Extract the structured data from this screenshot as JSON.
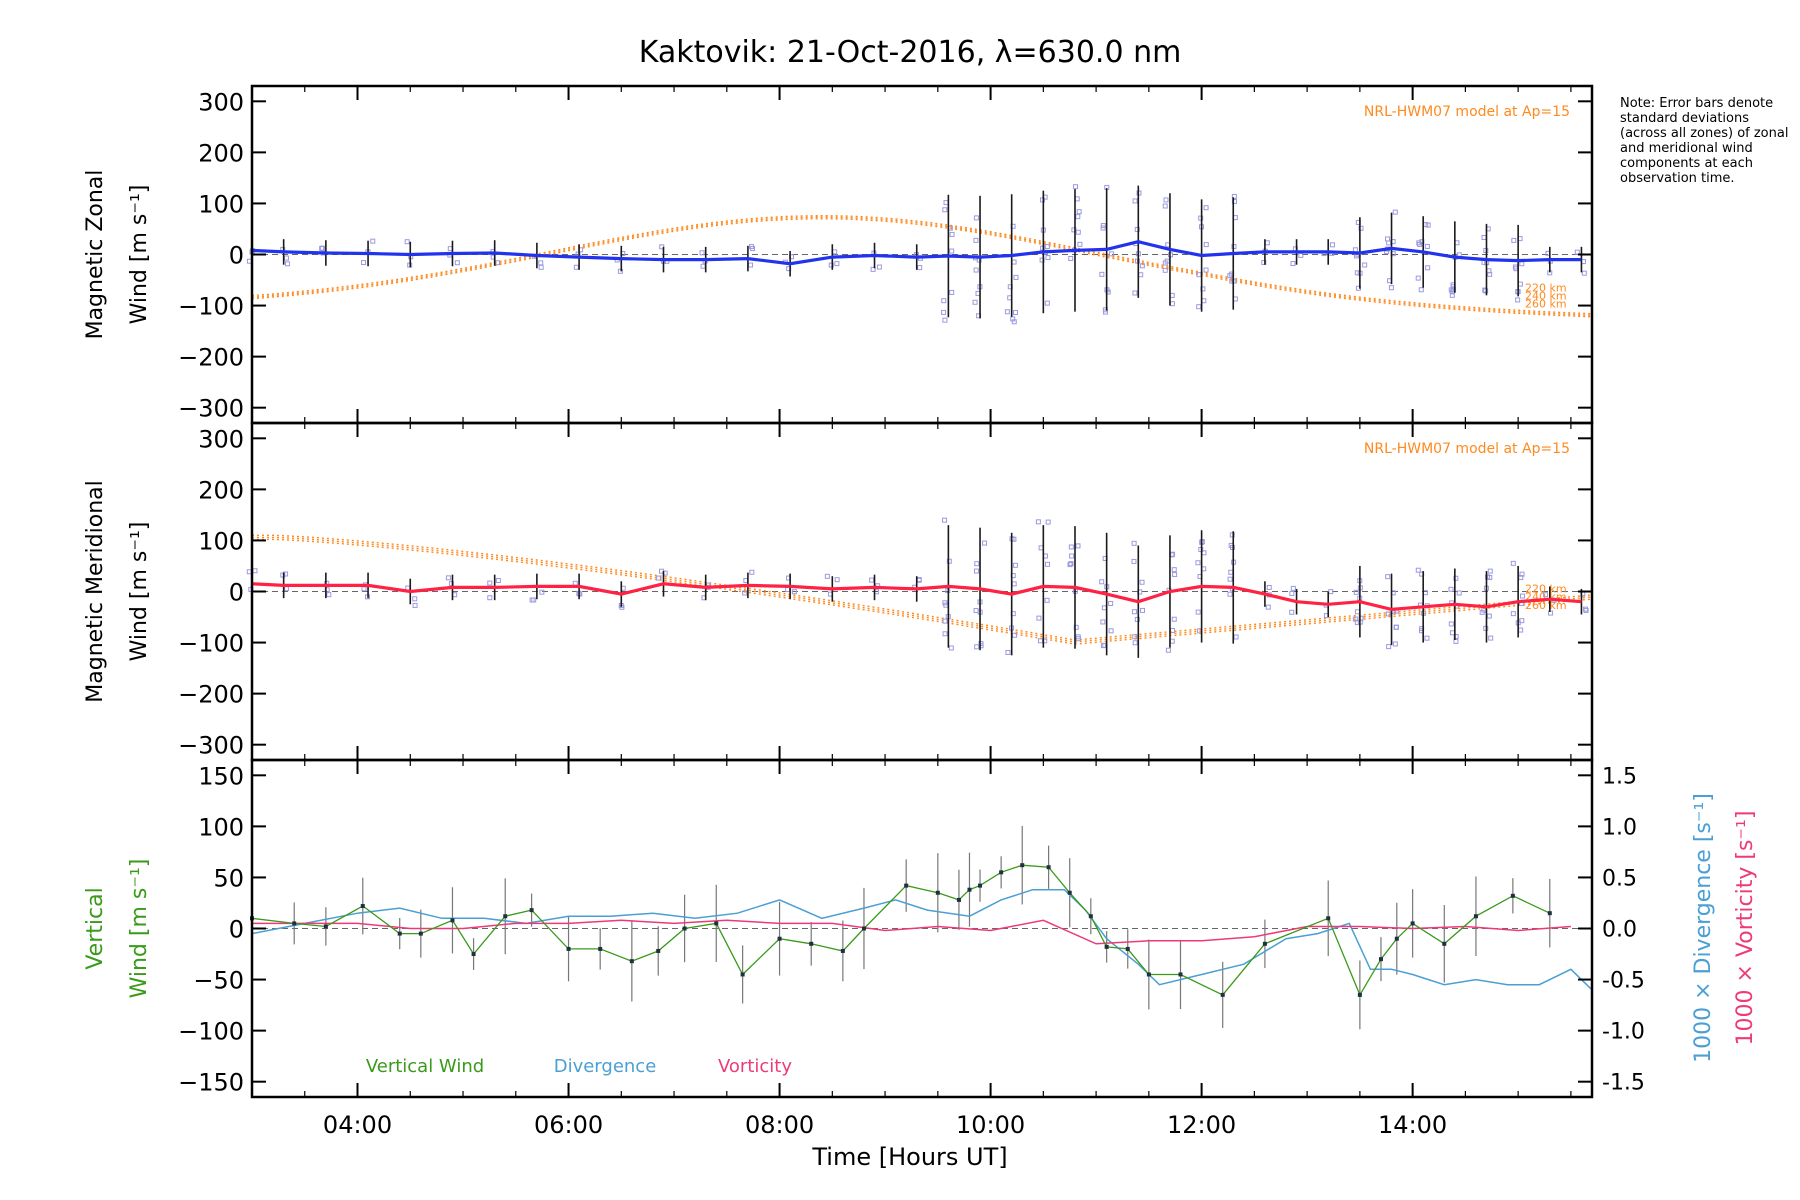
{
  "title": "Kaktovik: 21-Oct-2016, λ=630.0 nm",
  "note": "Note: Error bars denote standard deviations (across all zones) of zonal and meridional wind components at each observation time.",
  "xlabel": "Time [Hours UT]",
  "colors": {
    "zonal": "#2233ee",
    "meridional": "#ff2244",
    "vertical": "#3a9a1a",
    "divergence": "#4a9fd4",
    "vorticity": "#ee3a7a",
    "model": "#ff8a1e",
    "scatter": "#9a9ae0",
    "axis": "#000000"
  },
  "chart_data": [
    {
      "type": "line",
      "panel": "zonal",
      "ylabel_lines": [
        "Magnetic Zonal",
        "Wind [m s⁻¹]"
      ],
      "ylim": [
        -330,
        330
      ],
      "yticks": [
        300,
        200,
        100,
        0,
        -100,
        -200,
        -300
      ],
      "xlim": [
        3.0,
        15.7
      ],
      "xticks": [
        "04:00",
        "06:00",
        "08:00",
        "10:00",
        "12:00",
        "14:00"
      ],
      "model_label": "NRL-HWM07 model at Ap=15",
      "model_altitudes": [
        "220 km",
        "240 km",
        "260 km"
      ],
      "series": [
        {
          "x": [
            3.0,
            3.3,
            3.7,
            4.1,
            4.5,
            4.9,
            5.3,
            5.7,
            6.1,
            6.5,
            6.9,
            7.3,
            7.7,
            8.1,
            8.5,
            8.9,
            9.3,
            9.6,
            9.9,
            10.2,
            10.5,
            10.8,
            11.1,
            11.4,
            11.7,
            12.0,
            12.3,
            12.6,
            12.9,
            13.2,
            13.5,
            13.8,
            14.1,
            14.4,
            14.7,
            15.0,
            15.3,
            15.6
          ],
          "y": [
            8,
            5,
            3,
            2,
            0,
            2,
            3,
            -2,
            -5,
            -8,
            -10,
            -10,
            -8,
            -18,
            -5,
            -2,
            -5,
            -3,
            -5,
            -2,
            5,
            8,
            10,
            25,
            10,
            -2,
            2,
            5,
            5,
            5,
            3,
            12,
            5,
            -5,
            -10,
            -12,
            -10,
            -10
          ]
        }
      ]
    },
    {
      "type": "line",
      "panel": "meridional",
      "ylabel_lines": [
        "Magnetic Meridional",
        "Wind [m s⁻¹]"
      ],
      "ylim": [
        -330,
        330
      ],
      "yticks": [
        300,
        200,
        100,
        0,
        -100,
        -200,
        -300
      ],
      "xlim": [
        3.0,
        15.7
      ],
      "model_label": "NRL-HWM07 model at Ap=15",
      "model_altitudes": [
        "220 km",
        "240 km",
        "260 km"
      ],
      "series": [
        {
          "x": [
            3.0,
            3.3,
            3.7,
            4.1,
            4.5,
            4.9,
            5.3,
            5.7,
            6.1,
            6.5,
            6.9,
            7.3,
            7.7,
            8.1,
            8.5,
            8.9,
            9.3,
            9.6,
            9.9,
            10.2,
            10.5,
            10.8,
            11.1,
            11.4,
            11.7,
            12.0,
            12.3,
            12.6,
            12.9,
            13.2,
            13.5,
            13.8,
            14.1,
            14.4,
            14.7,
            15.0,
            15.3,
            15.6
          ],
          "y": [
            15,
            12,
            12,
            12,
            0,
            8,
            8,
            10,
            10,
            -5,
            15,
            8,
            12,
            10,
            5,
            8,
            5,
            10,
            5,
            -5,
            10,
            8,
            -5,
            -20,
            0,
            10,
            8,
            -5,
            -20,
            -25,
            -20,
            -35,
            -30,
            -25,
            -30,
            -20,
            -15,
            -20
          ]
        }
      ]
    },
    {
      "type": "line",
      "panel": "vertical",
      "ylabel_lines": [
        "Vertical",
        "Wind [m s⁻¹]"
      ],
      "ylim": [
        -165,
        165
      ],
      "yticks": [
        150,
        100,
        50,
        0,
        -50,
        -100,
        -150
      ],
      "y2lim": [
        -1.65,
        1.65
      ],
      "y2ticks": [
        "1.5",
        "1.0",
        "0.5",
        "0.0",
        "-0.5",
        "-1.0",
        "-1.5"
      ],
      "y2label_div": "1000 × Divergence [s⁻¹]",
      "y2label_vort": "1000 × Vorticity [s⁻¹]",
      "xlim": [
        3.0,
        15.7
      ],
      "xticks": [
        "04:00",
        "06:00",
        "08:00",
        "10:00",
        "12:00",
        "14:00"
      ],
      "legend": [
        "Vertical Wind",
        "Divergence",
        "Vorticity"
      ],
      "series": [
        {
          "name": "Vertical Wind",
          "x": [
            3.0,
            3.4,
            3.7,
            4.05,
            4.4,
            4.6,
            4.9,
            5.1,
            5.4,
            5.65,
            6.0,
            6.3,
            6.6,
            6.85,
            7.1,
            7.4,
            7.65,
            8.0,
            8.3,
            8.6,
            8.8,
            9.2,
            9.5,
            9.7,
            9.8,
            9.9,
            10.1,
            10.3,
            10.55,
            10.75,
            10.95,
            11.1,
            11.3,
            11.5,
            11.8,
            12.2,
            12.6,
            13.2,
            13.5,
            13.7,
            13.85,
            14.0,
            14.3,
            14.6,
            14.95,
            15.3
          ],
          "y": [
            10,
            5,
            2,
            22,
            -5,
            -5,
            8,
            -25,
            12,
            18,
            -20,
            -20,
            -32,
            -22,
            0,
            5,
            -45,
            -10,
            -15,
            -22,
            0,
            42,
            35,
            28,
            38,
            42,
            55,
            62,
            60,
            35,
            12,
            -18,
            -20,
            -45,
            -45,
            -65,
            -15,
            10,
            -65,
            -30,
            -10,
            5,
            -15,
            12,
            32,
            15
          ]
        },
        {
          "name": "Divergence",
          "x": [
            3.0,
            3.5,
            4.0,
            4.4,
            4.8,
            5.2,
            5.6,
            6.0,
            6.4,
            6.8,
            7.2,
            7.6,
            8.0,
            8.4,
            8.8,
            9.1,
            9.4,
            9.8,
            10.1,
            10.4,
            10.7,
            10.9,
            11.1,
            11.4,
            11.6,
            12.0,
            12.4,
            12.8,
            13.1,
            13.4,
            13.6,
            13.8,
            14.0,
            14.3,
            14.6,
            14.9,
            15.2,
            15.5,
            15.7
          ],
          "y": [
            -0.05,
            0.05,
            0.15,
            0.2,
            0.1,
            0.1,
            0.05,
            0.12,
            0.12,
            0.15,
            0.1,
            0.15,
            0.28,
            0.1,
            0.2,
            0.28,
            0.18,
            0.12,
            0.28,
            0.38,
            0.38,
            0.18,
            -0.1,
            -0.35,
            -0.55,
            -0.45,
            -0.35,
            -0.1,
            -0.05,
            0.05,
            -0.4,
            -0.4,
            -0.45,
            -0.55,
            -0.5,
            -0.55,
            -0.55,
            -0.4,
            -0.6
          ]
        },
        {
          "name": "Vorticity",
          "x": [
            3.0,
            3.5,
            4.0,
            4.5,
            5.0,
            5.5,
            6.0,
            6.5,
            7.0,
            7.5,
            8.0,
            8.5,
            9.0,
            9.5,
            10.0,
            10.5,
            11.0,
            11.5,
            12.0,
            12.5,
            13.0,
            13.5,
            14.0,
            14.5,
            15.0,
            15.5
          ],
          "y": [
            0.05,
            0.05,
            0.05,
            0.0,
            0.0,
            0.05,
            0.05,
            0.08,
            0.05,
            0.08,
            0.05,
            0.05,
            -0.02,
            0.02,
            -0.02,
            0.08,
            -0.15,
            -0.12,
            -0.12,
            -0.08,
            0.02,
            0.02,
            0.0,
            0.02,
            -0.02,
            0.02
          ]
        }
      ]
    }
  ]
}
